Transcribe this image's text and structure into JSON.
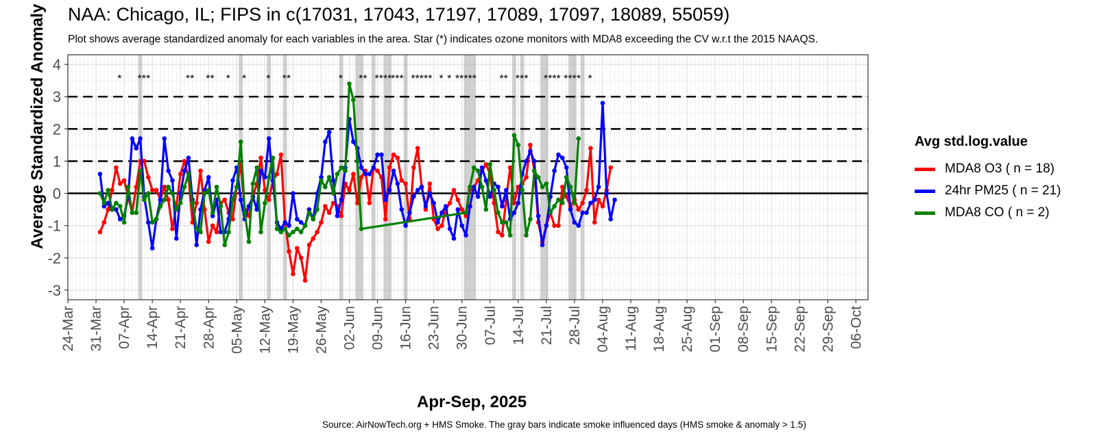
{
  "chart_data": {
    "type": "line",
    "title": "NAA: Chicago, IL; FIPS in c(17031, 17043, 17197, 17089, 17097, 18089, 55059)",
    "subtitle": "Plot shows average standardized anomaly for each variables in the area. Star (*) indicates ozone monitors with MDA8 exceeding the CV w.r.t the 2015 NAAQS.",
    "caption": "Source: AirNowTech.org + HMS Smoke. The gray bars indicate smoke influenced days (HMS smoke & anomaly > 1.5)",
    "xlabel": "Apr-Sep, 2025",
    "ylabel": "Average Standardized Anomaly",
    "xlim": [
      "2025-03-24",
      "2025-10-09"
    ],
    "ylim": [
      -3.3,
      4.3
    ],
    "x_ticks": [
      "24-Mar",
      "31-Mar",
      "07-Apr",
      "14-Apr",
      "21-Apr",
      "28-Apr",
      "05-May",
      "12-May",
      "19-May",
      "26-May",
      "02-Jun",
      "09-Jun",
      "16-Jun",
      "23-Jun",
      "30-Jun",
      "07-Jul",
      "14-Jul",
      "21-Jul",
      "28-Jul",
      "04-Aug",
      "11-Aug",
      "18-Aug",
      "25-Aug",
      "01-Sep",
      "08-Sep",
      "15-Sep",
      "22-Sep",
      "29-Sep",
      "06-Oct"
    ],
    "y_ticks": [
      -3,
      -2,
      -1,
      0,
      1,
      2,
      3,
      4
    ],
    "reference_lines": {
      "solid": [
        0
      ],
      "dashed": [
        1,
        2,
        3
      ]
    },
    "grid": true,
    "legend_title": "Avg std.log.value",
    "legend_position": "right",
    "start_date": "2025-04-01",
    "series": [
      {
        "name": "MDA8 O3 ( n = 18)",
        "color": "#ff0000",
        "values": [
          -1.2,
          -0.9,
          -0.5,
          0.1,
          0.8,
          0.3,
          0.4,
          -0.1,
          -0.6,
          0.2,
          1.0,
          1.0,
          0.5,
          0.1,
          0.1,
          -0.2,
          0.2,
          -0.2,
          -1.1,
          -0.4,
          0.6,
          1.0,
          0.5,
          -0.9,
          -0.3,
          0.7,
          -0.5,
          -1.5,
          -1.0,
          -1.2,
          -0.3,
          -0.2,
          -0.6,
          -0.8,
          0.2,
          0.9,
          -0.5,
          -0.7,
          -0.1,
          0.3,
          1.1,
          0.1,
          -0.2,
          0.4,
          0.6,
          1.2,
          -0.9,
          -1.8,
          -2.5,
          -1.7,
          -2.0,
          -2.7,
          -1.6,
          -1.4,
          -1.2,
          -0.9,
          -0.4,
          -0.6,
          -0.3,
          -0.4,
          -0.7,
          0.3,
          0.1,
          0.6,
          -0.3,
          0.5,
          0.7,
          -0.3,
          0.8,
          0.7,
          0.5,
          -0.8,
          0.8,
          1.2,
          1.1,
          0.4,
          0.3,
          -0.8,
          0.8,
          1.4,
          0.2,
          -0.5,
          0.3,
          -0.8,
          -1.1,
          -1.0,
          -0.5,
          -0.3,
          0.1,
          -0.2,
          -0.5,
          -0.7,
          0.1,
          0.2,
          0.4,
          0.7,
          0.9,
          0.6,
          -0.3,
          -1.2,
          -1.3,
          -0.2,
          0.8,
          -0.3,
          0.2,
          0.3,
          0.5,
          1.5,
          0.7,
          -0.9,
          -1.5,
          -1.0,
          -0.6,
          -1.0,
          -1.0,
          0.2,
          -0.1,
          -0.4,
          -0.2,
          -0.5,
          -0.3,
          0.1,
          1.4,
          -0.9,
          -0.2,
          -0.4,
          0.1,
          0.8
        ]
      },
      {
        "name": "24hr PM25 ( n = 21)",
        "color": "#0000ff",
        "values": [
          0.6,
          -0.4,
          -0.3,
          -0.5,
          -0.5,
          -0.8,
          -0.7,
          -0.1,
          1.7,
          1.4,
          1.7,
          -0.1,
          -0.9,
          -1.7,
          -0.8,
          -0.2,
          1.7,
          0.7,
          0.4,
          -1.4,
          0.0,
          0.7,
          1.1,
          -0.2,
          -1.6,
          -0.5,
          0.1,
          0.5,
          -0.7,
          -0.2,
          -1.2,
          -1.2,
          -0.8,
          0.4,
          0.8,
          -0.2,
          -0.8,
          -0.4,
          -0.1,
          -0.5,
          0.7,
          0.5,
          1.7,
          0.4,
          -0.9,
          -1.1,
          -0.9,
          -1.0,
          0.0,
          -0.8,
          -0.9,
          -1.0,
          -0.5,
          -0.8,
          0.0,
          0.5,
          1.6,
          1.9,
          0.4,
          -0.7,
          -0.2,
          0.8,
          2.3,
          1.6,
          1.4,
          0.8,
          0.6,
          0.6,
          0.8,
          1.2,
          1.2,
          -0.2,
          0.1,
          0.7,
          0.3,
          -0.5,
          -1.0,
          -0.6,
          -0.1,
          0.1,
          0.2,
          -0.4,
          0.0,
          -0.3,
          -0.9,
          -0.6,
          -0.4,
          -1.1,
          -1.4,
          -0.5,
          -1.0,
          -1.3,
          -0.4,
          0.2,
          -0.1,
          0.8,
          0.4,
          -0.1,
          0.3,
          0.2,
          -0.4,
          0.1,
          -0.8,
          -0.6,
          -0.3,
          0.6,
          1.0,
          1.3,
          1.0,
          -0.7,
          -1.6,
          -1.0,
          -0.1,
          0.7,
          1.2,
          1.1,
          0.8,
          -0.5,
          -0.9,
          -1.0,
          -0.6,
          -0.6,
          -0.3,
          -0.2,
          0.2,
          2.8,
          0.0,
          -0.8,
          -0.2
        ]
      },
      {
        "name": "MDA8 CO ( n = 2)",
        "color": "#008000",
        "values": [
          0.0,
          -0.3,
          0.1,
          -0.5,
          -0.3,
          -0.4,
          -0.9,
          0.2,
          -0.6,
          -0.6,
          0.7,
          -0.2,
          0.0,
          -0.9,
          -0.8,
          -0.4,
          -0.2,
          0.2,
          0.0,
          -0.5,
          -0.3,
          0.2,
          0.6,
          -0.3,
          -1.1,
          -1.2,
          0.0,
          0.1,
          -0.6,
          0.2,
          -0.4,
          -1.6,
          -1.2,
          -0.2,
          0.2,
          1.6,
          -0.6,
          -1.5,
          0.3,
          0.8,
          -1.2,
          -0.3,
          0.5,
          1.1,
          -1.1,
          -1.2,
          -1.1,
          -1.3,
          -1.2,
          -1.1,
          -1.2,
          -1.0,
          -0.6,
          -0.8,
          -0.5,
          0.4,
          0.2,
          0.5,
          0.0,
          0.6,
          0.8,
          0.7,
          3.4,
          2.9,
          1.0,
          -1.1,
          null,
          null,
          null,
          null,
          null,
          null,
          null,
          null,
          null,
          null,
          null,
          null,
          null,
          null,
          null,
          null,
          null,
          null,
          null,
          null,
          null,
          null,
          null,
          null,
          null,
          -0.6,
          0.2,
          0.8,
          0.7,
          0.2,
          -0.5,
          0.9,
          0.1,
          -0.6,
          -0.9,
          -0.9,
          -1.3,
          1.8,
          1.5,
          0.1,
          -1.3,
          -0.8,
          0.7,
          0.5,
          0.2,
          0.3,
          -0.6,
          -0.4,
          -0.2,
          -0.3,
          0.5,
          0.2,
          -0.3,
          1.7,
          null,
          null,
          null,
          null
        ]
      }
    ],
    "stars": [
      {
        "date": "2025-04-06",
        "label": "*"
      },
      {
        "date": "2025-04-11",
        "label": "***"
      },
      {
        "date": "2025-04-23",
        "label": "**"
      },
      {
        "date": "2025-04-28",
        "label": "**"
      },
      {
        "date": "2025-05-03",
        "label": "*"
      },
      {
        "date": "2025-05-07",
        "label": "*"
      },
      {
        "date": "2025-05-13",
        "label": "*"
      },
      {
        "date": "2025-05-17",
        "label": "**"
      },
      {
        "date": "2025-05-31",
        "label": "*"
      },
      {
        "date": "2025-06-05",
        "label": "**"
      },
      {
        "date": "2025-06-09",
        "label": "****"
      },
      {
        "date": "2025-06-13",
        "label": "***"
      },
      {
        "date": "2025-06-18",
        "label": "*****"
      },
      {
        "date": "2025-06-25",
        "label": "*"
      },
      {
        "date": "2025-06-27",
        "label": "*"
      },
      {
        "date": "2025-06-29",
        "label": "*****"
      },
      {
        "date": "2025-07-10",
        "label": "**"
      },
      {
        "date": "2025-07-14",
        "label": "***"
      },
      {
        "date": "2025-07-21",
        "label": "****"
      },
      {
        "date": "2025-07-26",
        "label": "****"
      },
      {
        "date": "2025-08-01",
        "label": "*"
      }
    ],
    "smoke_days": [
      "2025-04-11",
      "2025-05-06",
      "2025-05-13",
      "2025-05-17",
      "2025-05-31",
      "2025-06-04",
      "2025-06-05",
      "2025-06-08",
      "2025-06-11",
      "2025-06-12",
      "2025-06-16",
      "2025-07-01",
      "2025-07-02",
      "2025-07-03",
      "2025-07-13",
      "2025-07-15",
      "2025-07-20",
      "2025-07-21",
      "2025-07-27",
      "2025-07-28",
      "2025-07-30"
    ]
  }
}
